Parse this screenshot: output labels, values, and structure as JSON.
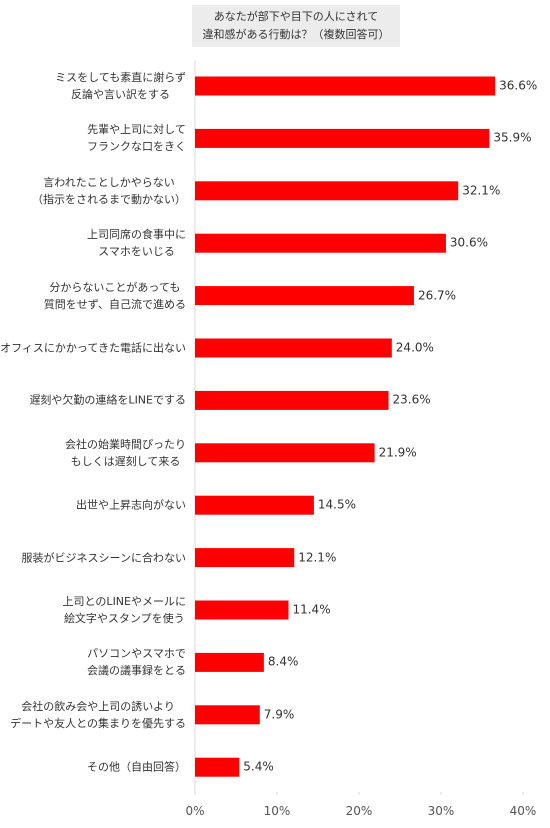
{
  "chart_data": {
    "type": "bar",
    "orientation": "horizontal",
    "title": "あなたが部下や目下の人にされて\n違和感がある行動は？（複数回答可）",
    "categories": [
      "ミスをしても素直に謝らず\n反論や言い訳をする",
      "先輩や上司に対して\nフランクな口をきく",
      "言われたことしかやらない\n（指示をされるまで動かない）",
      "上司同席の食事中に\nスマホをいじる",
      "分からないことがあっても\n質問をせず、自己流で進める",
      "オフィスにかかってきた電話に出ない",
      "遅刻や欠勤の連絡をLINEでする",
      "会社の始業時間ぴったり\nもしくは遅刻して来る",
      "出世や上昇志向がない",
      "服装がビジネスシーンに合わない",
      "上司とのLINEやメールに\n絵文字やスタンプを使う",
      "パソコンやスマホで\n会議の議事録をとる",
      "会社の飲み会や上司の誘いより\nデートや友人との集まりを優先する",
      "その他（自由回答）"
    ],
    "values": [
      36.6,
      35.9,
      32.1,
      30.6,
      26.7,
      24.0,
      23.6,
      21.9,
      14.5,
      12.1,
      11.4,
      8.4,
      7.9,
      5.4
    ],
    "value_labels": [
      "36.6%",
      "35.9%",
      "32.1%",
      "30.6%",
      "26.7%",
      "24.0%",
      "23.6%",
      "21.9%",
      "14.5%",
      "12.1%",
      "11.4%",
      "8.4%",
      "7.9%",
      "5.4%"
    ],
    "color": "#ff0000",
    "xlim": [
      0,
      40
    ],
    "xticks": [
      {
        "value": 0,
        "label": "0%"
      },
      {
        "value": 10,
        "label": "10%"
      },
      {
        "value": 20,
        "label": "20%"
      },
      {
        "value": 30,
        "label": "30%"
      },
      {
        "value": 40,
        "label": "40%"
      }
    ]
  }
}
